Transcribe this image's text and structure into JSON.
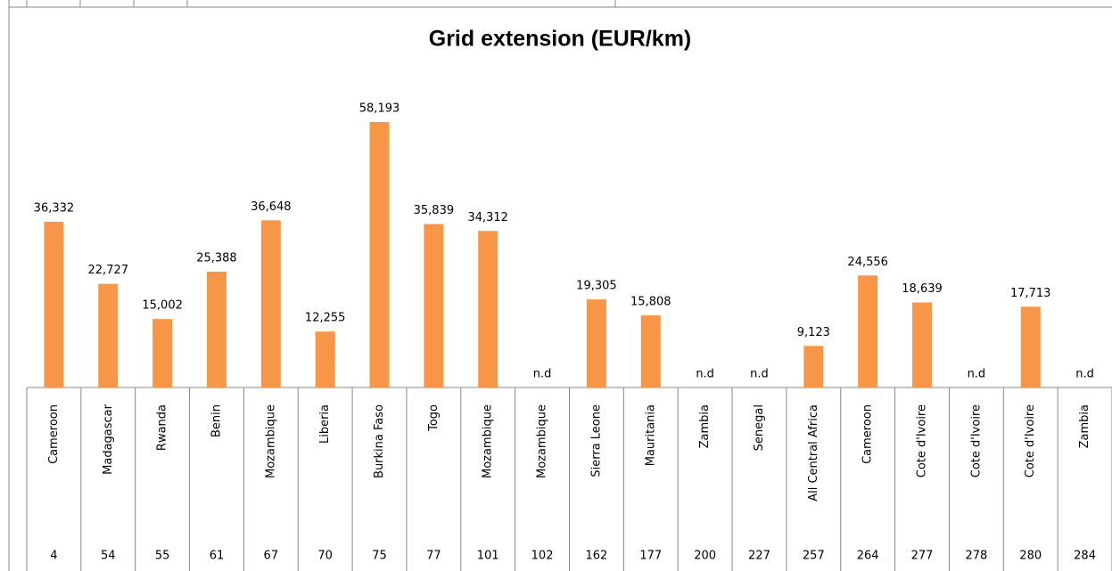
{
  "chart_data": {
    "type": "bar",
    "title": "Grid extension (EUR/km)",
    "categories": [
      "Cameroon",
      "Madagascar",
      "Rwanda",
      "Benin",
      "Mozambique",
      "Liberia",
      "Burkina Faso",
      "Togo",
      "Mozambique",
      "Mozambique",
      "Sierra Leone",
      "Mauritania",
      "Zambia",
      "Senegal",
      "All Central Africa",
      "Cameroon",
      "Cote d'Ivoire",
      "Cote d'Ivoire",
      "Cote d'Ivoire",
      "Zambia"
    ],
    "values": [
      36332,
      22727,
      15002,
      25388,
      36648,
      12255,
      58193,
      35839,
      34312,
      null,
      19305,
      15808,
      null,
      null,
      9123,
      24556,
      18639,
      null,
      17713,
      null
    ],
    "value_labels": [
      "36,332",
      "22,727",
      "15,002",
      "25,388",
      "36,648",
      "12,255",
      "58,193",
      "35,839",
      "34,312",
      "n.d",
      "19,305",
      "15,808",
      "n.d",
      "n.d",
      "9,123",
      "24,556",
      "18,639",
      "n.d",
      "17,713",
      "n.d"
    ],
    "row_numbers": [
      "4",
      "54",
      "55",
      "61",
      "67",
      "70",
      "75",
      "77",
      "101",
      "102",
      "162",
      "177",
      "200",
      "227",
      "257",
      "264",
      "277",
      "278",
      "280",
      "284"
    ],
    "color": "#f79646"
  }
}
